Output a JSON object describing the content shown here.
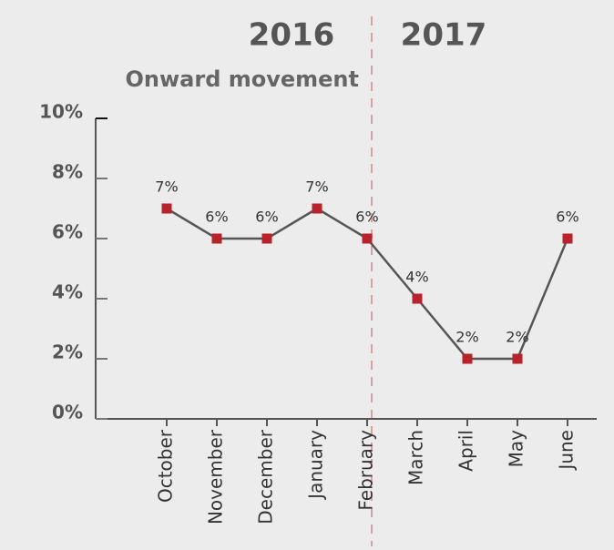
{
  "chart_data": {
    "type": "line",
    "y_label": "Onward movement",
    "annotations": [
      "2016",
      "2017"
    ],
    "categories": [
      "October",
      "November",
      "December",
      "January",
      "February",
      "March",
      "April",
      "May",
      "June"
    ],
    "series": [
      {
        "name": "Onward movement",
        "color": "#b8222a",
        "values": [
          7,
          6,
          6,
          7,
          6,
          4,
          2,
          2,
          6
        ],
        "value_labels": [
          "7%",
          "6%",
          "6%",
          "7%",
          "6%",
          "4%",
          "2%",
          "2%",
          "6%"
        ]
      }
    ],
    "ylim": [
      0,
      10
    ],
    "yticks": [
      {
        "value": 0,
        "label": "0%"
      },
      {
        "value": 2,
        "label": "2%"
      },
      {
        "value": 4,
        "label": "4%"
      },
      {
        "value": 6,
        "label": "6%"
      },
      {
        "value": 8,
        "label": "8%"
      },
      {
        "value": 10,
        "label": "10%"
      }
    ],
    "grid": false
  }
}
